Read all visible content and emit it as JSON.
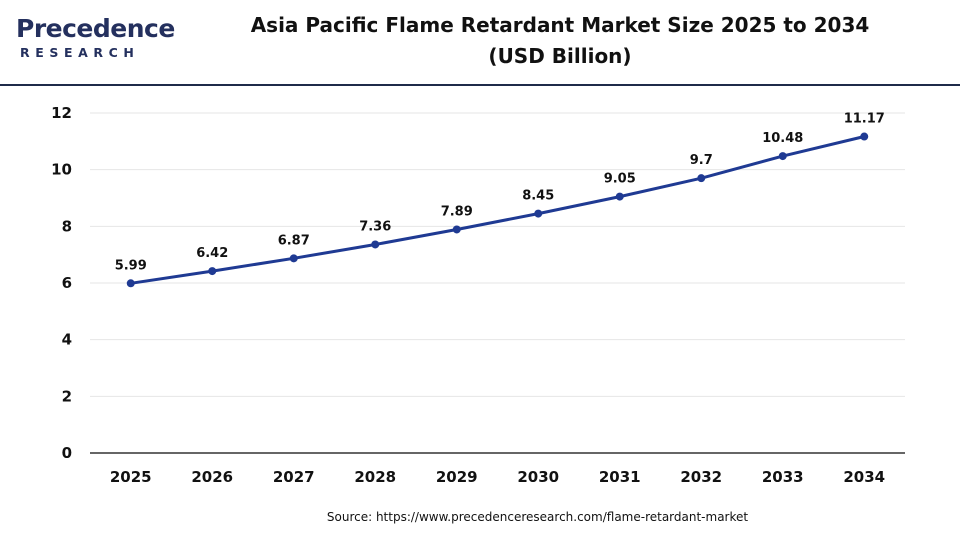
{
  "logo": {
    "word": "Precedence",
    "sub": "RESEARCH"
  },
  "title_line1": "Asia Pacific Flame Retardant Market Size 2025 to 2034",
  "title_line2": "(USD Billion)",
  "source": "Source: https://www.precedenceresearch.com/flame-retardant-market",
  "colors": {
    "line": "#1f3a93",
    "marker": "#1f3a93",
    "grid": "#e6e6e6",
    "axis": "#333333",
    "rule": "#1f2b4a"
  },
  "chart_data": {
    "type": "line",
    "title": "Asia Pacific Flame Retardant Market Size 2025 to 2034 (USD Billion)",
    "x": [
      "2025",
      "2026",
      "2027",
      "2028",
      "2029",
      "2030",
      "2031",
      "2032",
      "2033",
      "2034"
    ],
    "series": [
      {
        "values": [
          5.99,
          6.42,
          6.87,
          7.36,
          7.89,
          8.45,
          9.05,
          9.7,
          10.48,
          11.17
        ]
      }
    ],
    "data_labels": [
      "5.99",
      "6.42",
      "6.87",
      "7.36",
      "7.89",
      "8.45",
      "9.05",
      "9.7",
      "10.48",
      "11.17"
    ],
    "yticks": [
      "0",
      "2",
      "4",
      "6",
      "8",
      "10",
      "12"
    ],
    "ylim": [
      0,
      12
    ],
    "xlabel": "",
    "ylabel": "",
    "grid": true,
    "legend": "none"
  }
}
